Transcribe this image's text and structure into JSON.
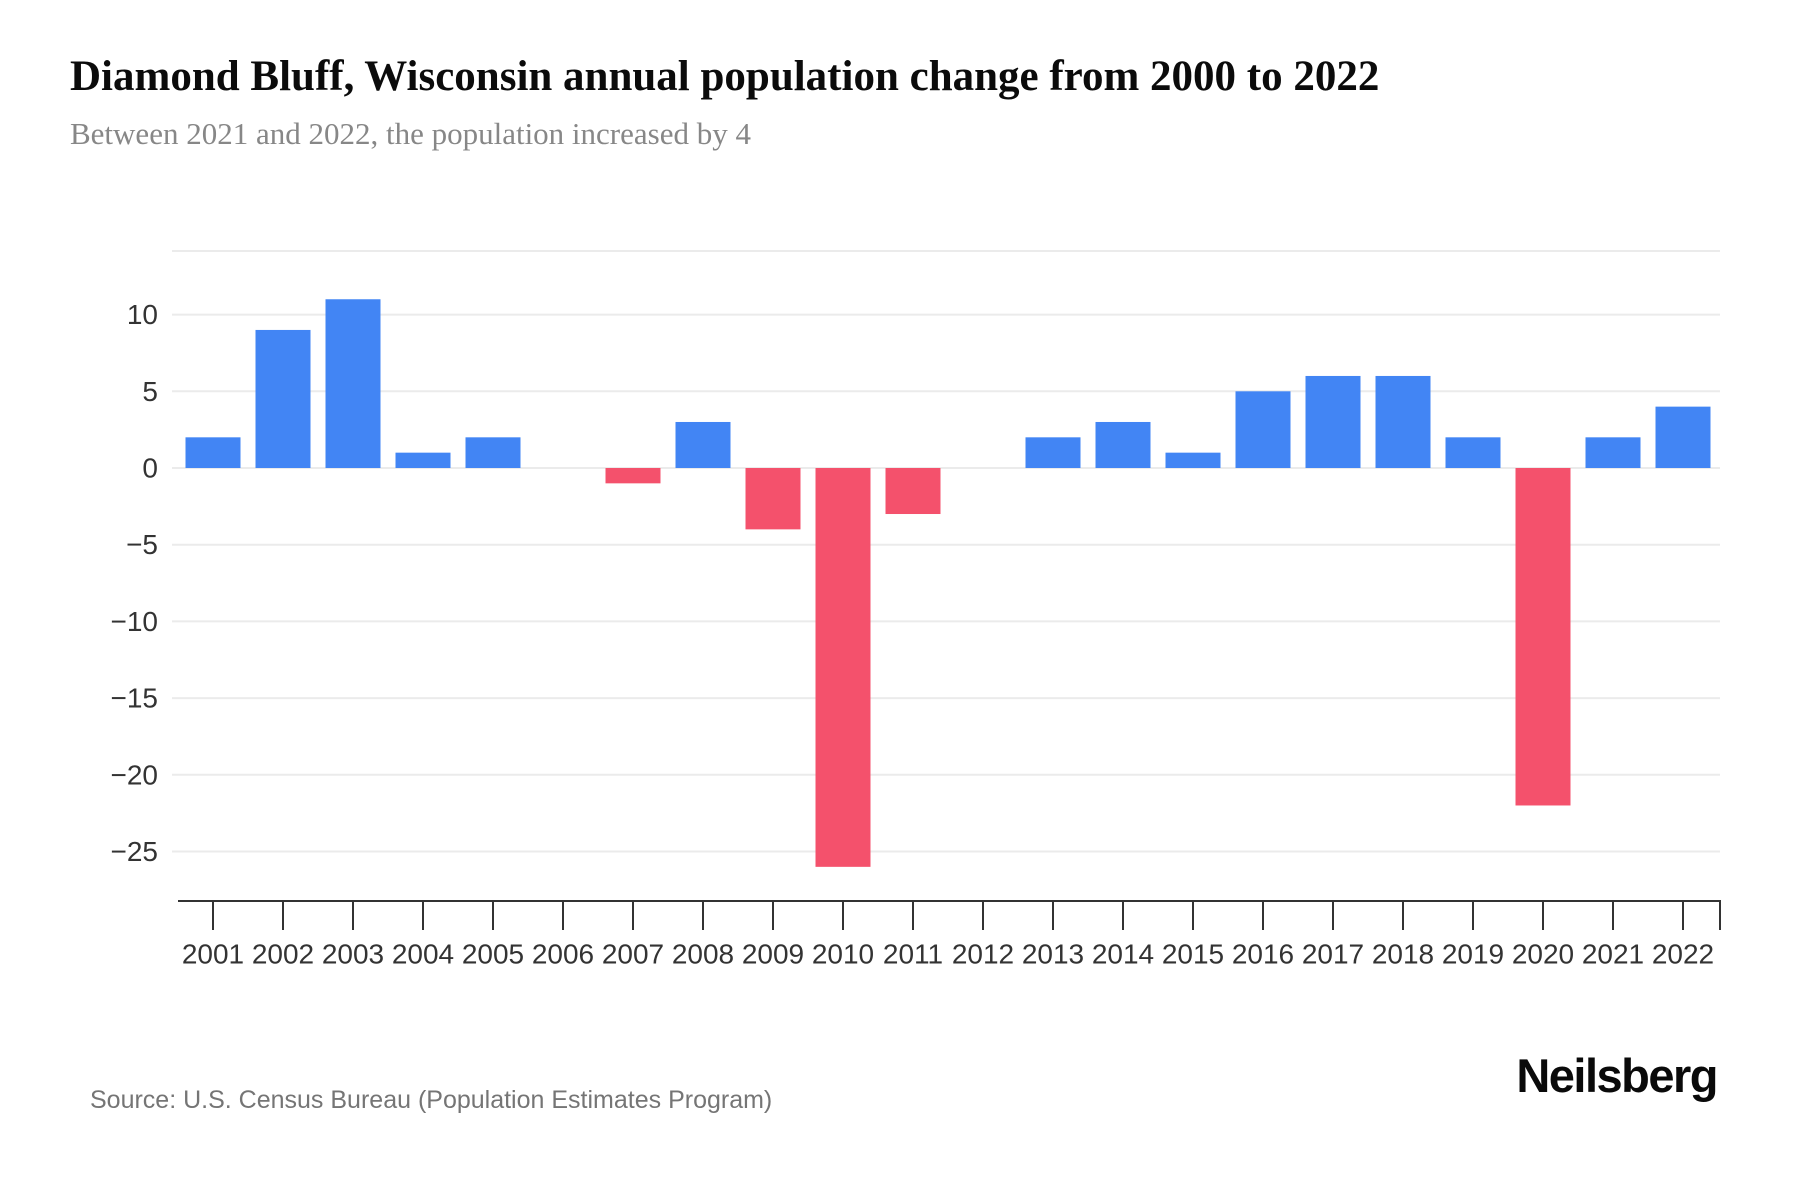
{
  "header": {
    "title": "Diamond Bluff, Wisconsin annual population change from 2000 to 2022",
    "subtitle": "Between 2021 and 2022, the population increased by 4"
  },
  "chart_data": {
    "type": "bar",
    "title": "Diamond Bluff, Wisconsin annual population change from 2000 to 2022",
    "subtitle": "Between 2021 and 2022, the population increased by 4",
    "categories": [
      "2001",
      "2002",
      "2003",
      "2004",
      "2005",
      "2006",
      "2007",
      "2008",
      "2009",
      "2010",
      "2011",
      "2012",
      "2013",
      "2014",
      "2015",
      "2016",
      "2017",
      "2018",
      "2019",
      "2020",
      "2021",
      "2022"
    ],
    "values": [
      2,
      9,
      11,
      1,
      2,
      0,
      -1,
      3,
      -4,
      -26,
      -3,
      0,
      2,
      3,
      1,
      5,
      6,
      6,
      2,
      -22,
      2,
      4
    ],
    "xlabel": "",
    "ylabel": "",
    "ylim": [
      -28,
      14
    ],
    "yticks": [
      10,
      5,
      0,
      -5,
      -10,
      -15,
      -20,
      -25
    ],
    "ytick_labels": [
      "10",
      "5",
      "0",
      "−5",
      "−10",
      "−15",
      "−20",
      "−25"
    ],
    "grid": true,
    "legend": false,
    "colors": {
      "positive": "#4285F4",
      "negative": "#F4516C",
      "gridline": "#EBEBEB",
      "axis": "#333333",
      "tick_label": "#333333"
    }
  },
  "footer": {
    "source": "Source: U.S. Census Bureau (Population Estimates Program)",
    "brand": "Neilsberg"
  }
}
